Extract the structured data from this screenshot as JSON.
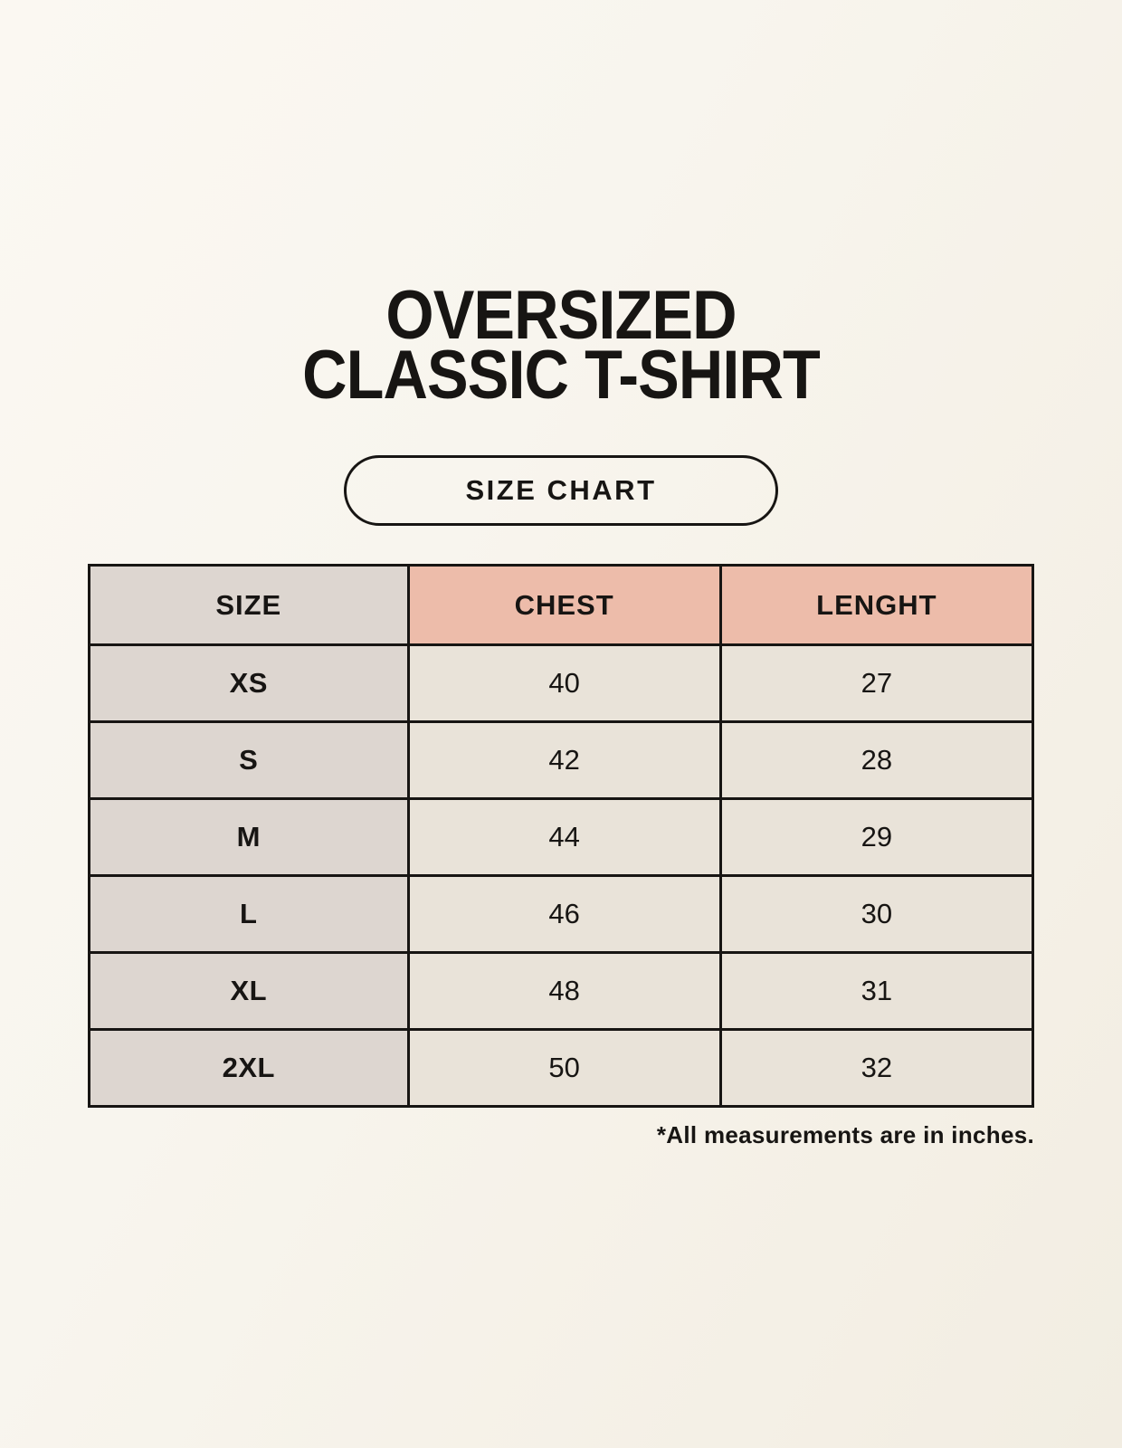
{
  "title": {
    "line1": "OVERSIZED",
    "line2": "CLASSIC T-SHIRT"
  },
  "size_chart_button": {
    "label": "SIZE CHART"
  },
  "size_table": {
    "columns": [
      {
        "key": "size",
        "label": "SIZE"
      },
      {
        "key": "chest",
        "label": "CHEST"
      },
      {
        "key": "length",
        "label": "LENGHT"
      }
    ],
    "rows": [
      {
        "size": "XS",
        "chest": "40",
        "length": "27"
      },
      {
        "size": "S",
        "chest": "42",
        "length": "28"
      },
      {
        "size": "M",
        "chest": "44",
        "length": "29"
      },
      {
        "size": "L",
        "chest": "46",
        "length": "30"
      },
      {
        "size": "XL",
        "chest": "48",
        "length": "31"
      },
      {
        "size": "2XL",
        "chest": "50",
        "length": "32"
      }
    ]
  },
  "footnote": "*All measurements are in inches.",
  "colors": {
    "page_background": "#f8f5ee",
    "size_column_background": "#ddd6d0",
    "measure_header_background": "#edbcaa",
    "data_cell_background": "#e9e3d9",
    "table_border": "#171513",
    "text": "#171513"
  },
  "chart_data": {
    "type": "table",
    "title": "OVERSIZED CLASSIC T-SHIRT",
    "columns": [
      "SIZE",
      "CHEST",
      "LENGHT"
    ],
    "rows": [
      [
        "XS",
        "40",
        "27"
      ],
      [
        "S",
        "42",
        "28"
      ],
      [
        "M",
        "44",
        "29"
      ],
      [
        "L",
        "46",
        "30"
      ],
      [
        "XL",
        "48",
        "31"
      ],
      [
        "2XL",
        "50",
        "32"
      ]
    ],
    "units_note": "*All measurements are in inches."
  }
}
